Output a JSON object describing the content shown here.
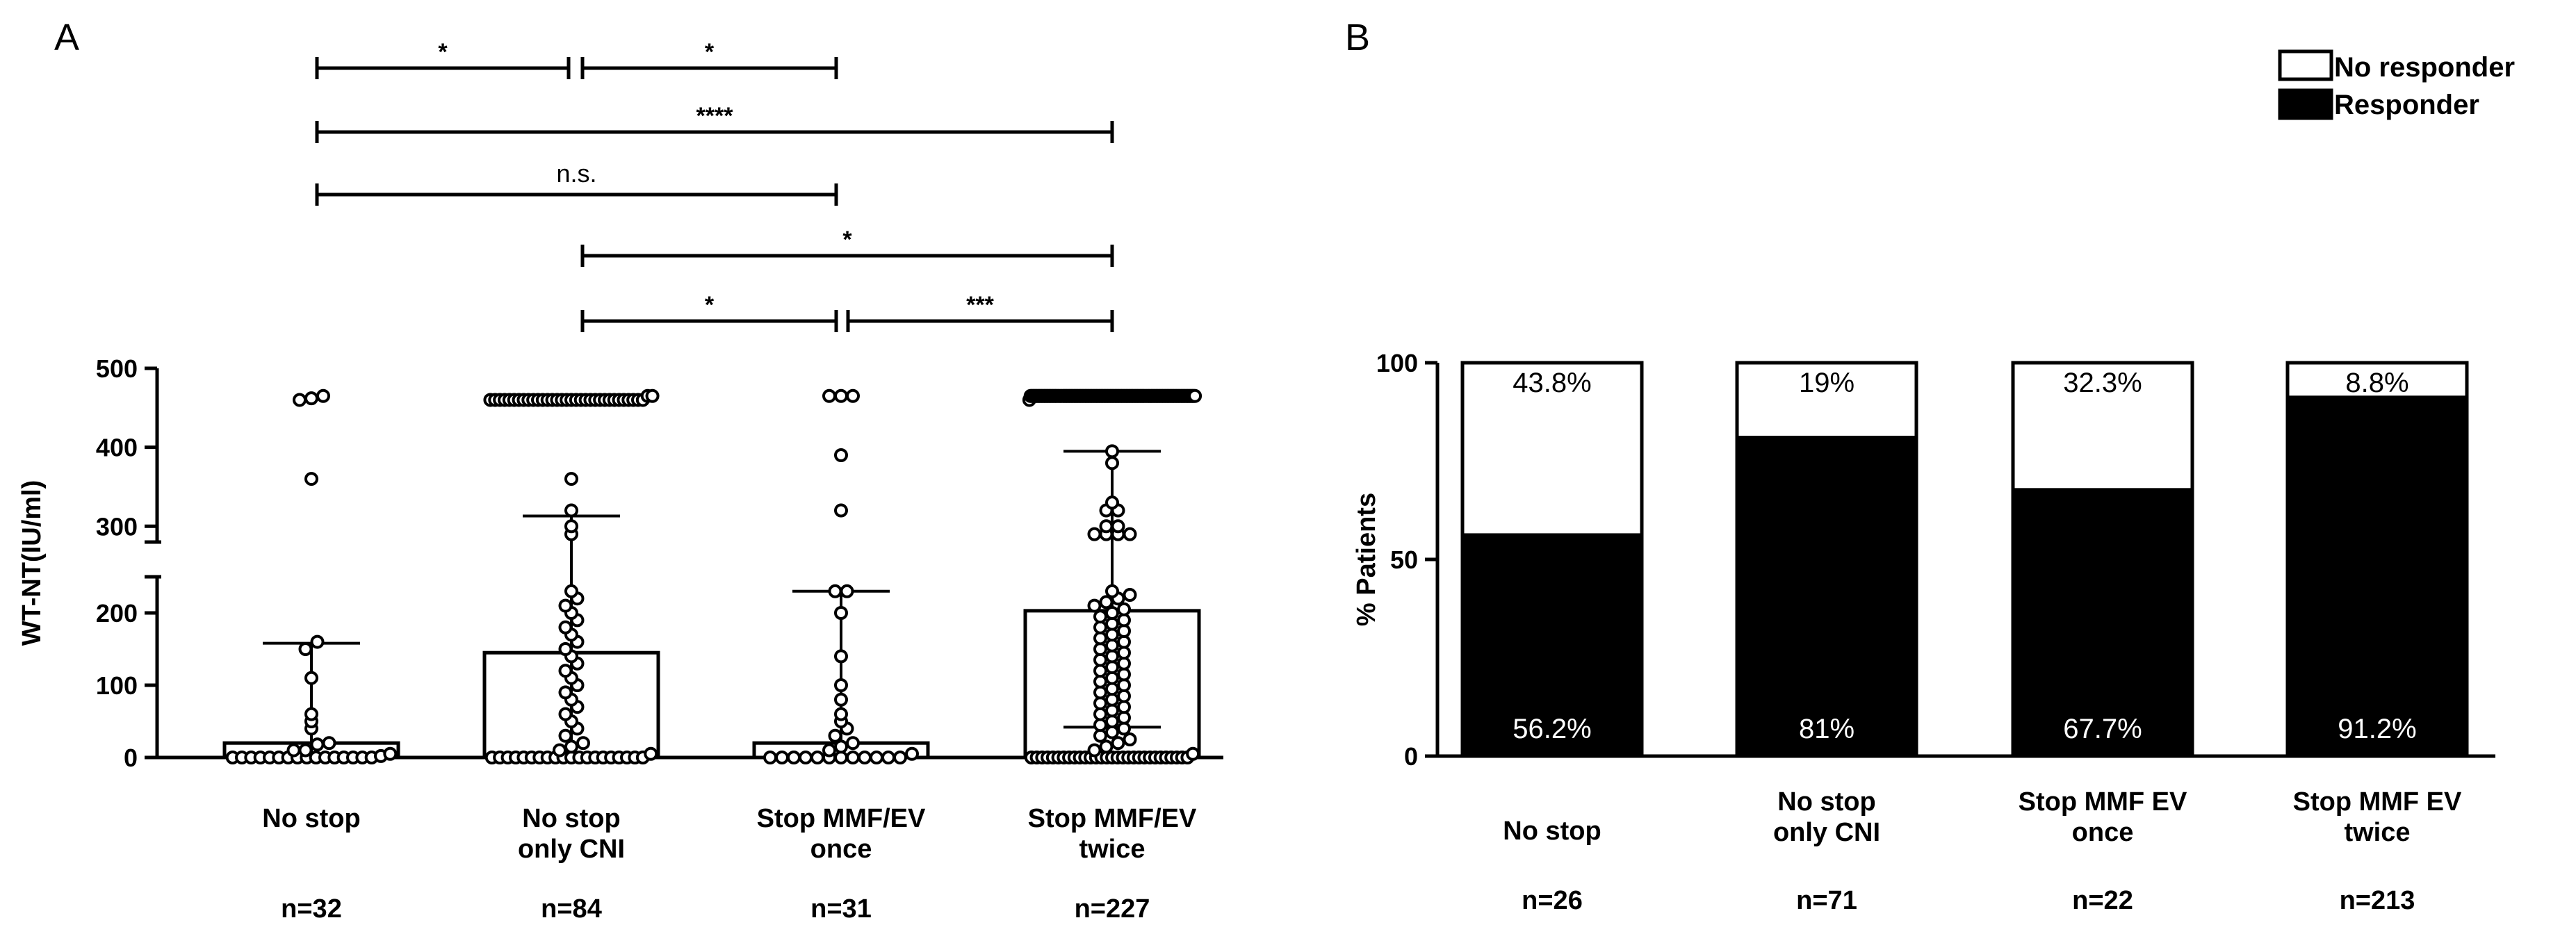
{
  "panel_a": {
    "letter": "A"
  },
  "panel_b": {
    "letter": "B"
  },
  "chart_data": [
    {
      "type": "scatter",
      "subtype": "dot-plot-with-bars",
      "title": "",
      "xlabel": "",
      "ylabel": "WT-NT(IU/ml)",
      "ylim": [
        0,
        500
      ],
      "y_axis_break": [
        250,
        280
      ],
      "y_ticks": [
        "0",
        "100",
        "200",
        "300",
        "400",
        "500"
      ],
      "categories": [
        "No stop",
        "No stop\nonly CNI",
        "Stop MMF/EV\nonce",
        "Stop MMF/EV\ntwice"
      ],
      "n_labels": [
        "n=32",
        "n=84",
        "n=31",
        "n=227"
      ],
      "bars": [
        20,
        145,
        20,
        203
      ],
      "whiskers_upper": [
        158,
        313,
        230,
        395
      ],
      "whiskers_lower": [
        0,
        0,
        0,
        42
      ],
      "points": [
        [
          0,
          0,
          0,
          0,
          0,
          0,
          0,
          0,
          0,
          0,
          0,
          0,
          0,
          0,
          0,
          0,
          2,
          5,
          10,
          10,
          18,
          20,
          40,
          50,
          60,
          110,
          150,
          160,
          360,
          460,
          462,
          465
        ],
        [
          0,
          0,
          0,
          0,
          0,
          0,
          0,
          0,
          0,
          0,
          0,
          0,
          0,
          0,
          0,
          0,
          0,
          0,
          0,
          0,
          5,
          10,
          15,
          20,
          30,
          40,
          50,
          60,
          70,
          80,
          90,
          100,
          110,
          120,
          130,
          140,
          150,
          160,
          170,
          180,
          190,
          200,
          210,
          220,
          230,
          290,
          300,
          320,
          360,
          460,
          460,
          460,
          460,
          460,
          460,
          460,
          460,
          460,
          460,
          460,
          460,
          460,
          460,
          460,
          460,
          460,
          460,
          460,
          460,
          460,
          460,
          460,
          460,
          460,
          460,
          460,
          460,
          460,
          460,
          460,
          460,
          460,
          465,
          465
        ],
        [
          0,
          0,
          0,
          0,
          0,
          0,
          0,
          0,
          0,
          0,
          0,
          0,
          5,
          10,
          15,
          20,
          30,
          40,
          50,
          60,
          80,
          100,
          140,
          200,
          230,
          230,
          320,
          390,
          465,
          465,
          465
        ],
        [
          0,
          0,
          0,
          0,
          0,
          0,
          0,
          0,
          0,
          0,
          0,
          0,
          0,
          0,
          0,
          0,
          0,
          0,
          0,
          0,
          0,
          0,
          0,
          0,
          0,
          0,
          0,
          0,
          0,
          0,
          5,
          10,
          15,
          20,
          25,
          30,
          35,
          40,
          45,
          50,
          55,
          60,
          65,
          70,
          75,
          80,
          85,
          90,
          95,
          100,
          105,
          110,
          115,
          120,
          125,
          130,
          135,
          140,
          145,
          150,
          155,
          160,
          165,
          170,
          175,
          180,
          185,
          190,
          195,
          200,
          205,
          210,
          215,
          220,
          225,
          230,
          290,
          290,
          290,
          290,
          300,
          300,
          320,
          320,
          330,
          380,
          395,
          460,
          465,
          465,
          465,
          465,
          465,
          465,
          465,
          465,
          465,
          465,
          465,
          465,
          465,
          465,
          465,
          465,
          465,
          465,
          465,
          465,
          465,
          465,
          465,
          465,
          465,
          465,
          465,
          465,
          465,
          465,
          465,
          465,
          465,
          465,
          465,
          465,
          465,
          465,
          465,
          465,
          465,
          465,
          465,
          465,
          465,
          465,
          465,
          465,
          465,
          465,
          465,
          465,
          465,
          465,
          465,
          465,
          465,
          465,
          465,
          465,
          465,
          465,
          465,
          465,
          465,
          465,
          465,
          465,
          465,
          465,
          465,
          465,
          465,
          465,
          465,
          465,
          465,
          465,
          465,
          465,
          465,
          465,
          465,
          465,
          465,
          465,
          465,
          465,
          465,
          465,
          465,
          465,
          465,
          465,
          465,
          465,
          465,
          465,
          465,
          465,
          465,
          465,
          465,
          465,
          465,
          465,
          465,
          465,
          465,
          465,
          465,
          465,
          465,
          465,
          465,
          465,
          465,
          465,
          465,
          465,
          465,
          465,
          465,
          465,
          465,
          465,
          465,
          465,
          465,
          465,
          465,
          465,
          465
        ]
      ],
      "significance": [
        {
          "from": 0,
          "to": 1,
          "label": "*"
        },
        {
          "from": 1,
          "to": 2,
          "label": "*"
        },
        {
          "from": 0,
          "to": 3,
          "label": "****"
        },
        {
          "from": 0,
          "to": 2,
          "label": "n.s."
        },
        {
          "from": 1,
          "to": 3,
          "label": "*"
        },
        {
          "from": 1,
          "to": 2,
          "label": "*"
        },
        {
          "from": 2,
          "to": 3,
          "label": "***"
        }
      ]
    },
    {
      "type": "bar",
      "subtype": "stacked-100",
      "title": "",
      "xlabel": "",
      "ylabel": "% Patients",
      "ylim": [
        0,
        100
      ],
      "y_ticks": [
        "0",
        "50",
        "100"
      ],
      "categories": [
        "No stop",
        "No stop\nonly CNI",
        "Stop MMF EV\nonce",
        "Stop MMF EV\ntwice"
      ],
      "n_labels": [
        "n=26",
        "n=71",
        "n=22",
        "n=213"
      ],
      "series": [
        {
          "name": "Responder",
          "color": "#000000",
          "values": [
            56.2,
            81,
            67.7,
            91.2
          ],
          "labels": [
            "56.2%",
            "81%",
            "67.7%",
            "91.2%"
          ]
        },
        {
          "name": "No responder",
          "color": "#ffffff",
          "values": [
            43.8,
            19,
            32.3,
            8.8
          ],
          "labels": [
            "43.8%",
            "19%",
            "32.3%",
            "8.8%"
          ]
        }
      ],
      "legend": {
        "position": "top-right",
        "entries": [
          "No responder",
          "Responder"
        ]
      }
    }
  ]
}
